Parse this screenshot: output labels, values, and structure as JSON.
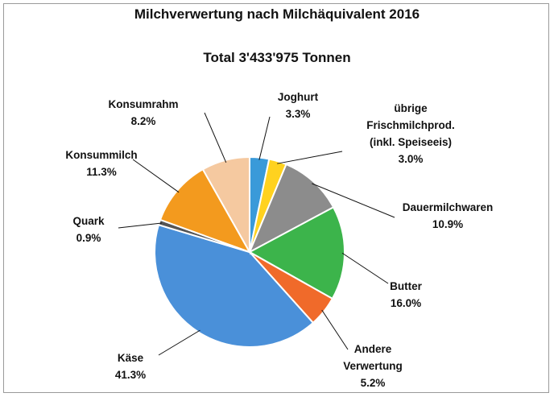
{
  "chart_data": {
    "type": "pie",
    "title": "Milchverwertung nach Milchäquivalent 2016",
    "subtitle": "Total 3'433'975 Tonnen",
    "slices": [
      {
        "label": [
          "Joghurt"
        ],
        "value": 3.3,
        "pct_label": "3.3%",
        "color": "#3a9ad9"
      },
      {
        "label": [
          "übrige",
          "Frischmilchprod.",
          "(inkl. Speiseeis)"
        ],
        "value": 3.0,
        "pct_label": "3.0%",
        "color": "#ffd21f"
      },
      {
        "label": [
          "Dauermilchwaren"
        ],
        "value": 10.9,
        "pct_label": "10.9%",
        "color": "#8c8c8c"
      },
      {
        "label": [
          "Butter"
        ],
        "value": 16.0,
        "pct_label": "16.0%",
        "color": "#3cb44b"
      },
      {
        "label": [
          "Andere",
          "Verwertung"
        ],
        "value": 5.2,
        "pct_label": "5.2%",
        "color": "#f06a2a"
      },
      {
        "label": [
          "Käse"
        ],
        "value": 41.3,
        "pct_label": "41.3%",
        "color": "#4a90d9"
      },
      {
        "label": [
          "Quark"
        ],
        "value": 0.9,
        "pct_label": "0.9%",
        "color": "#555555"
      },
      {
        "label": [
          "Konsummilch"
        ],
        "value": 11.3,
        "pct_label": "11.3%",
        "color": "#f39a1e"
      },
      {
        "label": [
          "Konsumrahm"
        ],
        "value": 8.2,
        "pct_label": "8.2%",
        "color": "#f5c9a0"
      }
    ]
  }
}
